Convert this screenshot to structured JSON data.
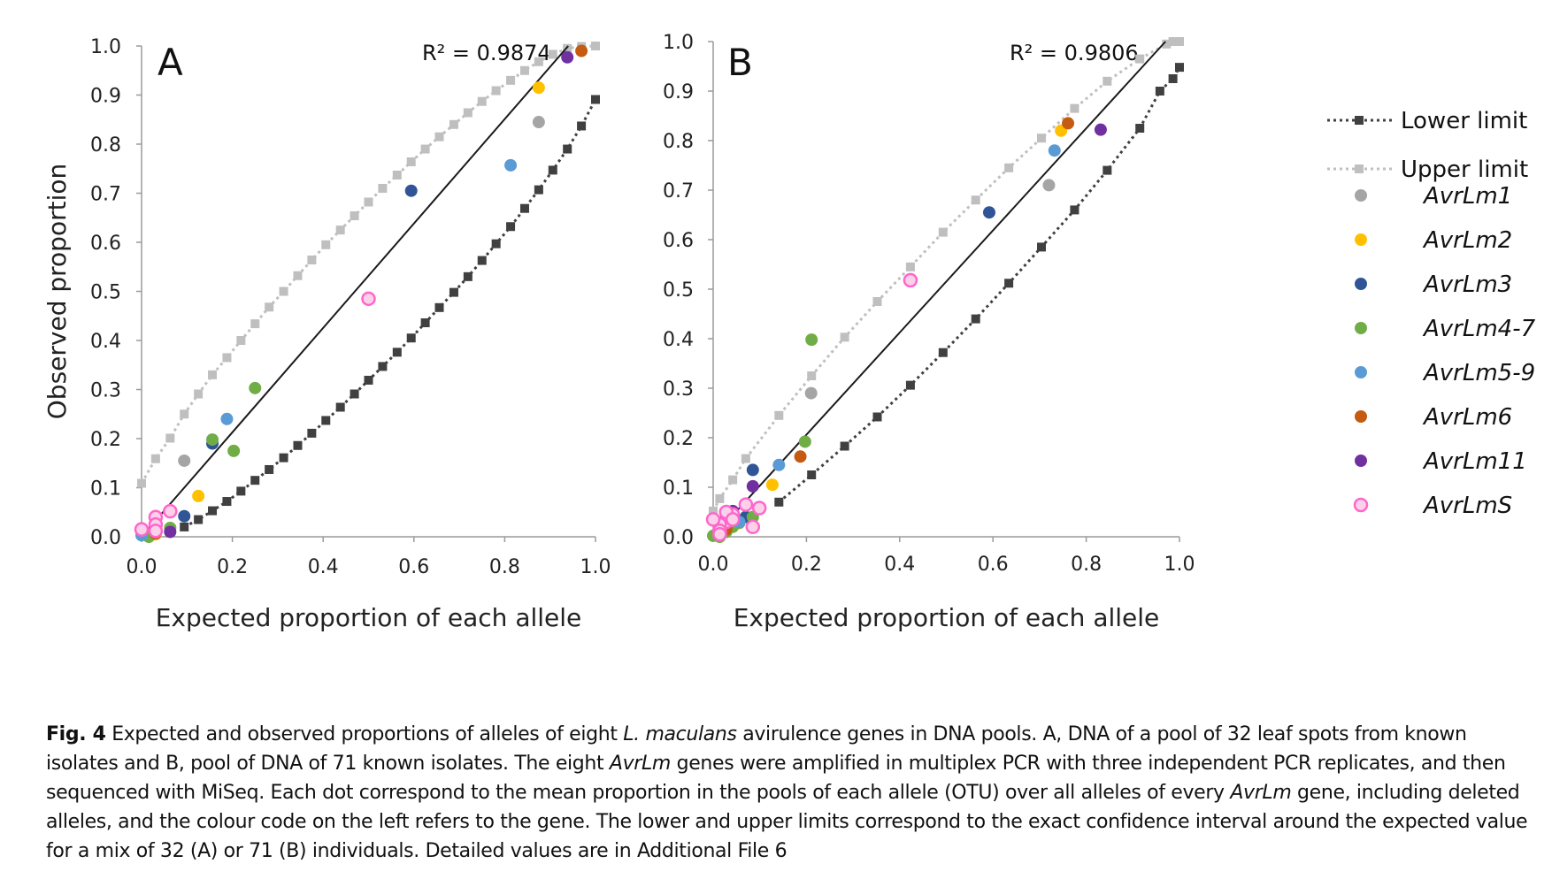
{
  "colors": {
    "AvrLm1": "#a5a5a5",
    "AvrLm2": "#ffc000",
    "AvrLm3": "#2f5597",
    "AvrLm4-7": "#70ad47",
    "AvrLm5-9": "#5b9bd5",
    "AvrLm6": "#c55a11",
    "AvrLm11": "#7030a0",
    "AvrLmS": "#ff66cc",
    "lower": "#404040",
    "upper": "#bfbfbf"
  },
  "legend": {
    "lower_limit": "Lower limit",
    "upper_limit": "Upper limit",
    "genes": [
      "AvrLm1",
      "AvrLm2",
      "AvrLm3",
      "AvrLm4-7",
      "AvrLm5-9",
      "AvrLm6",
      "AvrLm11",
      "AvrLmS"
    ]
  },
  "chart_data": [
    {
      "type": "scatter",
      "panel": "A",
      "r2_text": "R² = 0.9874",
      "xlabel": "Expected proportion of each allele",
      "ylabel": "Observed  proportion",
      "xlim": [
        0,
        1
      ],
      "ylim": [
        0,
        1
      ],
      "xticks": [
        "0.0",
        "0.2",
        "0.4",
        "0.6",
        "0.8",
        "1.0"
      ],
      "yticks": [
        "0.0",
        "0.1",
        "0.2",
        "0.3",
        "0.4",
        "0.5",
        "0.6",
        "0.7",
        "0.8",
        "0.9",
        "1.0"
      ],
      "series": [
        {
          "name": "AvrLm1",
          "points": [
            [
              0.094,
              0.155
            ],
            [
              0.875,
              0.845
            ],
            [
              0.031,
              0.02
            ]
          ]
        },
        {
          "name": "AvrLm2",
          "points": [
            [
              0.125,
              0.083
            ],
            [
              0.875,
              0.915
            ],
            [
              0.031,
              0.005
            ]
          ]
        },
        {
          "name": "AvrLm3",
          "points": [
            [
              0.594,
              0.705
            ],
            [
              0.156,
              0.19
            ],
            [
              0.094,
              0.042
            ],
            [
              0.031,
              0.03
            ]
          ]
        },
        {
          "name": "AvrLm4-7",
          "points": [
            [
              0.25,
              0.303
            ],
            [
              0.156,
              0.198
            ],
            [
              0.203,
              0.175
            ],
            [
              0.063,
              0.018
            ],
            [
              0.031,
              0.01
            ],
            [
              0.016,
              0.0
            ]
          ]
        },
        {
          "name": "AvrLm5-9",
          "points": [
            [
              0.813,
              0.757
            ],
            [
              0.188,
              0.24
            ],
            [
              0.0,
              0.003
            ]
          ]
        },
        {
          "name": "AvrLm6",
          "points": [
            [
              0.969,
              0.99
            ],
            [
              0.031,
              0.007
            ]
          ]
        },
        {
          "name": "AvrLm11",
          "points": [
            [
              0.938,
              0.977
            ],
            [
              0.063,
              0.01
            ]
          ]
        },
        {
          "name": "AvrLmS",
          "points": [
            [
              0.5,
              0.485
            ],
            [
              0.063,
              0.052
            ],
            [
              0.031,
              0.04
            ],
            [
              0.031,
              0.025
            ],
            [
              0.0,
              0.015
            ],
            [
              0.031,
              0.012
            ]
          ]
        }
      ],
      "upper_limit": {
        "x": [
          0.0,
          0.031,
          0.063,
          0.094,
          0.125,
          0.156,
          0.188,
          0.219,
          0.25,
          0.281,
          0.313,
          0.344,
          0.375,
          0.406,
          0.438,
          0.469,
          0.5,
          0.531,
          0.563,
          0.594,
          0.625,
          0.656,
          0.688,
          0.719,
          0.75,
          0.781,
          0.813,
          0.844,
          0.875,
          0.906,
          0.938,
          0.969,
          1.0
        ],
        "y": [
          0.109,
          0.159,
          0.201,
          0.25,
          0.291,
          0.33,
          0.365,
          0.4,
          0.434,
          0.468,
          0.5,
          0.532,
          0.564,
          0.595,
          0.625,
          0.654,
          0.682,
          0.71,
          0.737,
          0.764,
          0.79,
          0.815,
          0.84,
          0.864,
          0.887,
          0.909,
          0.93,
          0.95,
          0.968,
          0.983,
          0.995,
          0.999,
          1.0
        ]
      },
      "lower_limit": {
        "x": [
          0.094,
          0.125,
          0.156,
          0.188,
          0.219,
          0.25,
          0.281,
          0.313,
          0.344,
          0.375,
          0.406,
          0.438,
          0.469,
          0.5,
          0.531,
          0.563,
          0.594,
          0.625,
          0.656,
          0.688,
          0.719,
          0.75,
          0.781,
          0.813,
          0.844,
          0.875,
          0.906,
          0.938,
          0.969,
          1.0
        ],
        "y": [
          0.02,
          0.035,
          0.053,
          0.072,
          0.093,
          0.115,
          0.137,
          0.161,
          0.186,
          0.211,
          0.237,
          0.264,
          0.291,
          0.319,
          0.347,
          0.376,
          0.405,
          0.436,
          0.467,
          0.498,
          0.53,
          0.563,
          0.597,
          0.632,
          0.669,
          0.707,
          0.747,
          0.79,
          0.837,
          0.891
        ]
      },
      "fit_line": [
        [
          0.0,
          0.0
        ],
        [
          0.94,
          1.0
        ]
      ]
    },
    {
      "type": "scatter",
      "panel": "B",
      "r2_text": "R² = 0.9806",
      "xlabel": "Expected proportion of each allele",
      "ylabel": "",
      "xlim": [
        0,
        1
      ],
      "ylim": [
        0,
        1
      ],
      "xticks": [
        "0.0",
        "0.2",
        "0.4",
        "0.6",
        "0.8",
        "1.0"
      ],
      "yticks": [
        "0.0",
        "0.1",
        "0.2",
        "0.3",
        "0.4",
        "0.5",
        "0.6",
        "0.7",
        "0.8",
        "0.9",
        "1.0"
      ],
      "series": [
        {
          "name": "AvrLm1",
          "points": [
            [
              0.21,
              0.29
            ],
            [
              0.72,
              0.71
            ],
            [
              0.042,
              0.025
            ],
            [
              0.014,
              0.005
            ]
          ]
        },
        {
          "name": "AvrLm2",
          "points": [
            [
              0.127,
              0.105
            ],
            [
              0.746,
              0.82
            ],
            [
              0.028,
              0.012
            ]
          ]
        },
        {
          "name": "AvrLm3",
          "points": [
            [
              0.592,
              0.655
            ],
            [
              0.085,
              0.135
            ],
            [
              0.07,
              0.04
            ],
            [
              0.028,
              0.03
            ]
          ]
        },
        {
          "name": "AvrLm4-7",
          "points": [
            [
              0.211,
              0.398
            ],
            [
              0.197,
              0.192
            ],
            [
              0.085,
              0.04
            ],
            [
              0.056,
              0.028
            ],
            [
              0.042,
              0.02
            ],
            [
              0.028,
              0.01
            ],
            [
              0.014,
              0.0
            ],
            [
              0.0,
              0.002
            ]
          ]
        },
        {
          "name": "AvrLm5-9",
          "points": [
            [
              0.732,
              0.78
            ],
            [
              0.141,
              0.145
            ],
            [
              0.056,
              0.03
            ]
          ]
        },
        {
          "name": "AvrLm6",
          "points": [
            [
              0.761,
              0.835
            ],
            [
              0.187,
              0.162
            ],
            [
              0.028,
              0.015
            ]
          ]
        },
        {
          "name": "AvrLm11",
          "points": [
            [
              0.831,
              0.822
            ],
            [
              0.085,
              0.102
            ],
            [
              0.042,
              0.052
            ],
            [
              0.028,
              0.04
            ]
          ]
        },
        {
          "name": "AvrLmS",
          "points": [
            [
              0.423,
              0.518
            ],
            [
              0.099,
              0.058
            ],
            [
              0.07,
              0.065
            ],
            [
              0.085,
              0.02
            ],
            [
              0.042,
              0.045
            ],
            [
              0.028,
              0.03
            ],
            [
              0.014,
              0.025
            ],
            [
              0.014,
              0.012
            ],
            [
              0.0,
              0.035
            ],
            [
              0.028,
              0.05
            ],
            [
              0.014,
              0.005
            ],
            [
              0.042,
              0.035
            ]
          ]
        }
      ],
      "upper_limit": {
        "x": [
          0.0,
          0.014,
          0.042,
          0.07,
          0.141,
          0.211,
          0.282,
          0.352,
          0.423,
          0.493,
          0.563,
          0.634,
          0.704,
          0.775,
          0.845,
          0.915,
          0.972,
          0.986,
          1.0
        ],
        "y": [
          0.052,
          0.077,
          0.115,
          0.158,
          0.245,
          0.325,
          0.403,
          0.475,
          0.545,
          0.615,
          0.68,
          0.745,
          0.805,
          0.865,
          0.92,
          0.965,
          0.995,
          1.0,
          1.0
        ]
      },
      "lower_limit": {
        "x": [
          0.141,
          0.211,
          0.282,
          0.352,
          0.423,
          0.493,
          0.563,
          0.634,
          0.704,
          0.775,
          0.845,
          0.915,
          0.958,
          0.986,
          1.0
        ],
        "y": [
          0.07,
          0.125,
          0.183,
          0.242,
          0.306,
          0.372,
          0.44,
          0.512,
          0.585,
          0.66,
          0.74,
          0.825,
          0.9,
          0.925,
          0.948
        ]
      },
      "fit_line": [
        [
          0.0,
          0.0
        ],
        [
          0.97,
          1.0
        ]
      ]
    }
  ],
  "caption": {
    "label": "Fig. 4",
    "t1": "  Expected and observed proportions of alleles of eight ",
    "i1": "L. maculans",
    "t2": " avirulence genes in DNA pools. A, DNA of a pool of 32 leaf spots from known isolates and B, pool of DNA of 71 known isolates. The eight ",
    "i2": "AvrLm",
    "t3": " genes were amplified in multiplex PCR with three independent PCR replicates, and then sequenced with MiSeq. Each dot correspond to the mean proportion in the pools of each allele (OTU) over all alleles of every ",
    "i3": "AvrLm",
    "t4": " gene, including deleted alleles, and the colour code on the left refers to the gene. The lower and upper limits correspond to the exact confidence interval around the expected value for a mix of 32 (A) or 71 (B) individuals. Detailed values are in Additional File 6"
  }
}
